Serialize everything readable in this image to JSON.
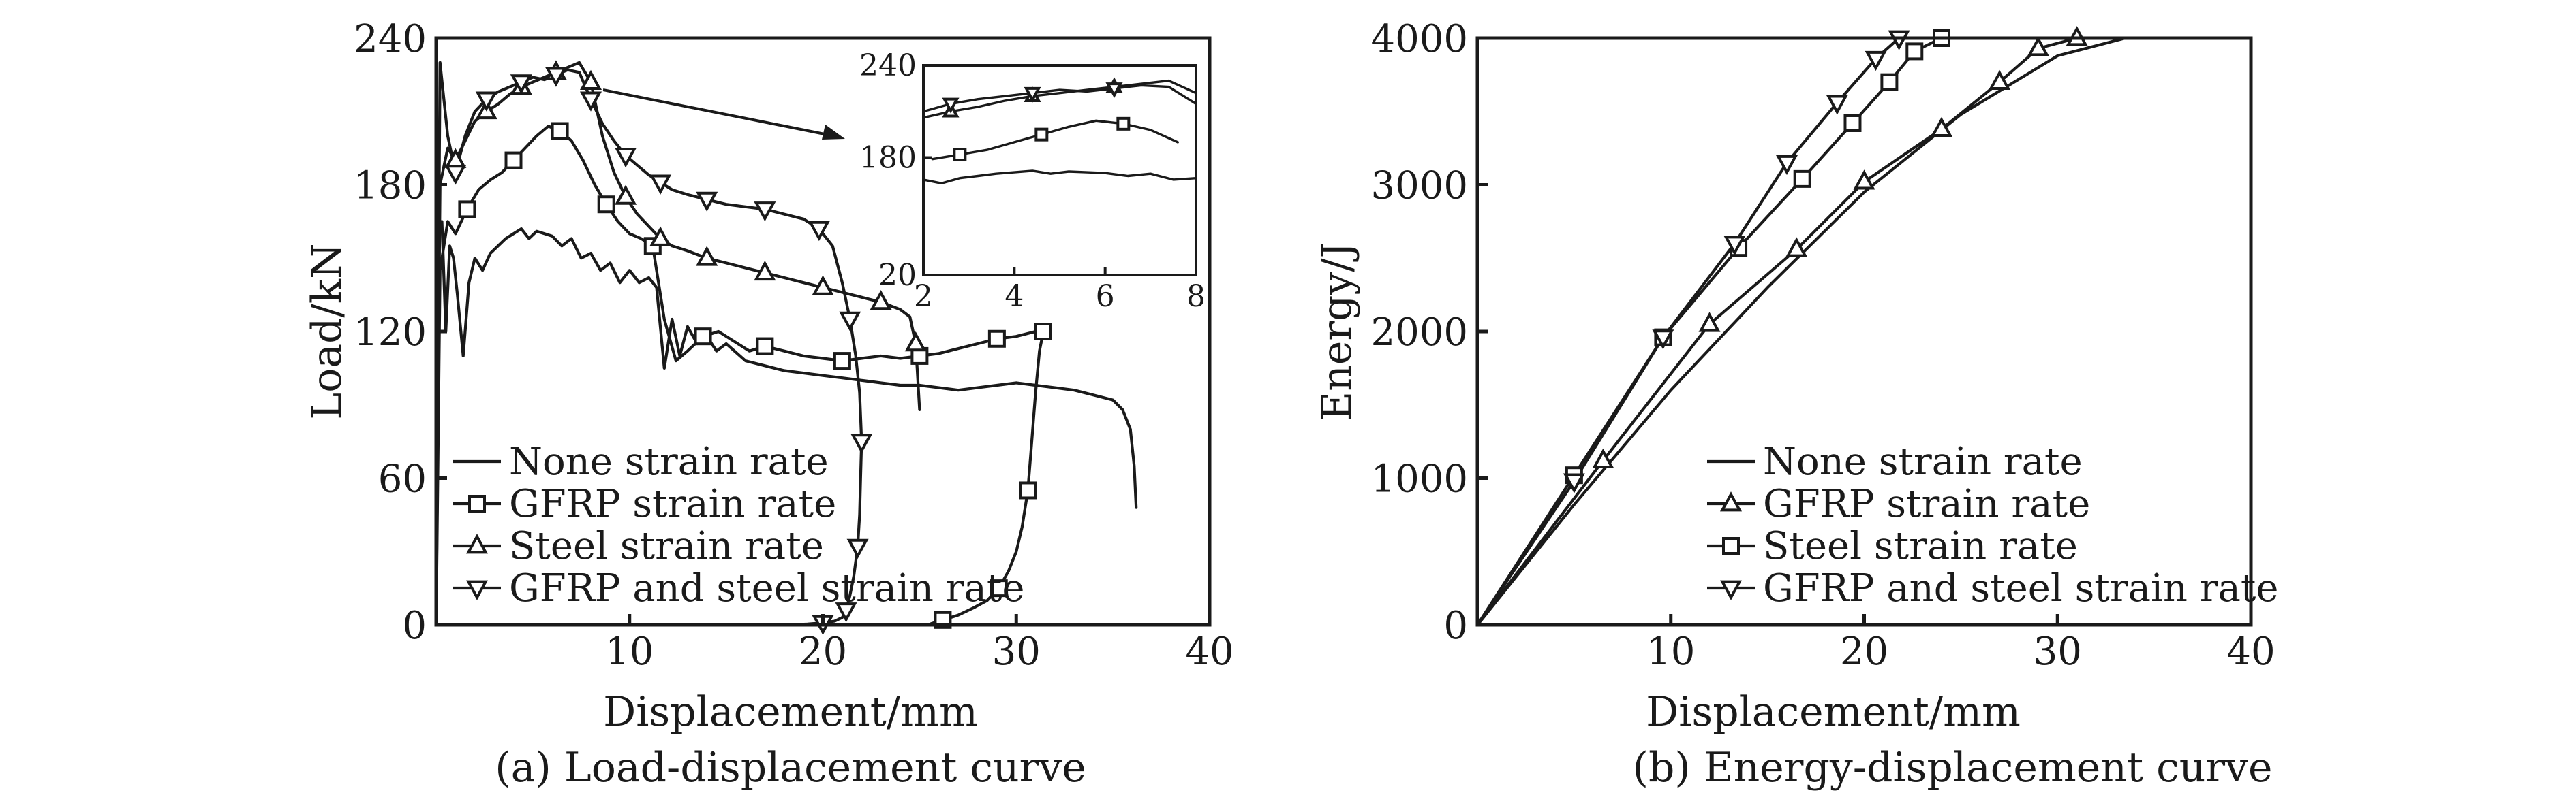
{
  "chart_data": [
    {
      "id": "a",
      "type": "line",
      "caption": "(a) Load-displacement curve",
      "xlabel": "Displacement/mm",
      "ylabel": "Load/kN",
      "xlim": [
        0,
        40
      ],
      "ylim": [
        0,
        240
      ],
      "xticks": [
        10,
        20,
        30,
        40
      ],
      "yticks": [
        0,
        60,
        120,
        180,
        240
      ],
      "legend_position": "bottom-left",
      "series": [
        {
          "name": "None strain rate",
          "marker": "none",
          "x": [
            0,
            0.1,
            0.3,
            0.5,
            0.7,
            0.9,
            1.1,
            1.4,
            1.7,
            2.0,
            2.4,
            2.8,
            3.2,
            3.6,
            4.0,
            4.4,
            4.8,
            5.2,
            5.6,
            6.0,
            6.5,
            7.0,
            7.5,
            8.0,
            8.5,
            9.0,
            9.5,
            10.0,
            10.5,
            11.0,
            11.4,
            11.8,
            12.2,
            12.6,
            13.0,
            13.5,
            14.0,
            14.5,
            15.0,
            16.0,
            17.0,
            18.0,
            19.0,
            20.0,
            21.0,
            22.0,
            23.0,
            24.0,
            25.0,
            26.0,
            27.0,
            28.0,
            29.0,
            30.0,
            31.0,
            32.0,
            33.0,
            34.0,
            35.0,
            35.5,
            35.9,
            36.1,
            36.2
          ],
          "y": [
            0,
            160,
            165,
            120,
            155,
            150,
            135,
            110,
            140,
            150,
            145,
            152,
            155,
            158,
            160,
            162,
            158,
            161,
            160,
            159,
            155,
            158,
            150,
            152,
            145,
            148,
            140,
            145,
            140,
            142,
            138,
            105,
            125,
            110,
            122,
            115,
            118,
            112,
            115,
            108,
            106,
            104,
            103,
            102,
            101,
            100,
            99,
            98,
            98,
            97,
            96,
            97,
            98,
            99,
            98,
            97,
            96,
            94,
            92,
            88,
            80,
            65,
            48
          ]
        },
        {
          "name": "GFRP strain rate",
          "marker": "square",
          "x": [
            0,
            0.2,
            0.6,
            1.0,
            1.6,
            2.2,
            2.8,
            3.4,
            4.0,
            4.6,
            5.2,
            5.8,
            6.4,
            7.0,
            7.6,
            8.2,
            8.8,
            9.4,
            10.0,
            10.6,
            11.2,
            11.8,
            12.4,
            13.0,
            13.8,
            14.6,
            15.4,
            16.2,
            17.0,
            18.0,
            19.0,
            20.0,
            21.0,
            22.0,
            23.0,
            24.0,
            25.0,
            26.0,
            27.0,
            28.0,
            29.0,
            30.0,
            31.0,
            31.3,
            31.4,
            31.2,
            31.0,
            30.8,
            30.6,
            30.3,
            30.0,
            29.6,
            29.1,
            28.5,
            27.8,
            27.0,
            26.2,
            25.6
          ],
          "y": [
            0,
            145,
            165,
            160,
            170,
            178,
            182,
            185,
            190,
            195,
            200,
            204,
            202,
            198,
            190,
            180,
            172,
            165,
            160,
            158,
            155,
            125,
            108,
            112,
            118,
            120,
            116,
            112,
            114,
            112,
            110,
            109,
            108,
            109,
            110,
            109,
            110,
            111,
            113,
            115,
            117,
            118,
            120,
            121,
            120,
            112,
            95,
            75,
            55,
            40,
            30,
            22,
            15,
            10,
            7,
            4,
            2,
            0.5
          ]
        },
        {
          "name": "Steel strain rate",
          "marker": "triangle-up",
          "x": [
            0,
            0.2,
            0.6,
            1.0,
            1.5,
            2.0,
            2.6,
            3.2,
            3.8,
            4.4,
            5.0,
            5.6,
            6.2,
            6.8,
            7.4,
            8.0,
            8.6,
            9.2,
            9.8,
            10.4,
            11.0,
            11.6,
            12.2,
            13.0,
            14.0,
            15.0,
            16.0,
            17.0,
            18.0,
            19.0,
            20.0,
            21.0,
            22.0,
            23.0,
            24.0,
            24.5,
            24.8,
            25.0
          ],
          "y": [
            0,
            180,
            195,
            190,
            198,
            206,
            210,
            213,
            217,
            220,
            222,
            224,
            226,
            228,
            230,
            222,
            200,
            185,
            175,
            168,
            163,
            158,
            155,
            153,
            150,
            148,
            146,
            144,
            142,
            140,
            138,
            136,
            134,
            132,
            129,
            126,
            115,
            88
          ]
        },
        {
          "name": "GFRP and steel strain rate",
          "marker": "triangle-down",
          "x": [
            0,
            0.2,
            0.6,
            1.0,
            1.5,
            2.0,
            2.6,
            3.2,
            3.8,
            4.4,
            5.0,
            5.6,
            6.2,
            6.8,
            7.4,
            8.0,
            8.6,
            9.2,
            9.8,
            10.4,
            11.0,
            11.6,
            12.2,
            13.0,
            14.0,
            15.0,
            16.0,
            17.0,
            18.0,
            19.0,
            19.8,
            20.5,
            21.0,
            21.4,
            21.7,
            21.9,
            22.0,
            21.95,
            21.9,
            21.8,
            21.6,
            21.4,
            21.2,
            21.0,
            20.6,
            20.0,
            19.2,
            18.4
          ],
          "y": [
            0,
            230,
            200,
            185,
            200,
            210,
            215,
            218,
            220,
            222,
            224,
            223,
            225,
            227,
            226,
            215,
            205,
            198,
            192,
            188,
            184,
            181,
            178,
            176,
            174,
            172,
            171,
            170,
            168,
            166,
            162,
            155,
            140,
            125,
            110,
            95,
            75,
            60,
            45,
            32,
            20,
            12,
            6,
            3,
            1.5,
            0.8,
            0.3,
            0
          ]
        }
      ],
      "inset": {
        "xlim": [
          2,
          8
        ],
        "ylim": [
          20,
          240
        ],
        "xticks": [
          2,
          4,
          6,
          8
        ],
        "yticks": [
          20,
          180,
          240
        ],
        "note": "zoomed view of the load peaks"
      }
    },
    {
      "id": "b",
      "type": "line",
      "caption": "(b) Energy-displacement curve",
      "xlabel": "Displacement/mm",
      "ylabel": "Energy/J",
      "xlim": [
        0,
        40
      ],
      "ylim": [
        0,
        4000
      ],
      "xticks": [
        10,
        20,
        30,
        40
      ],
      "yticks": [
        0,
        1000,
        2000,
        3000,
        4000
      ],
      "legend_position": "bottom-right",
      "series": [
        {
          "name": "None strain rate",
          "marker": "none",
          "x": [
            0,
            5,
            10,
            15,
            20,
            25,
            30,
            33.5
          ],
          "y": [
            0,
            820,
            1600,
            2300,
            2950,
            3480,
            3880,
            4000
          ]
        },
        {
          "name": "GFRP strain rate",
          "marker": "triangle-up",
          "x": [
            0,
            6.5,
            12,
            16.5,
            20,
            24,
            27,
            29,
            31
          ],
          "y": [
            0,
            1120,
            2050,
            2560,
            3020,
            3380,
            3700,
            3930,
            4000
          ]
        },
        {
          "name": "Steel strain rate",
          "marker": "square",
          "x": [
            0,
            5,
            9.6,
            13.5,
            16.8,
            19.4,
            21.3,
            22.6,
            24
          ],
          "y": [
            0,
            1020,
            1960,
            2570,
            3040,
            3420,
            3700,
            3910,
            4000
          ]
        },
        {
          "name": "GFRP and steel strain rate",
          "marker": "triangle-down",
          "x": [
            0,
            5,
            9.6,
            13.3,
            16,
            18.6,
            20.6,
            21.8
          ],
          "y": [
            0,
            980,
            1960,
            2600,
            3150,
            3560,
            3860,
            4000
          ]
        }
      ]
    }
  ]
}
